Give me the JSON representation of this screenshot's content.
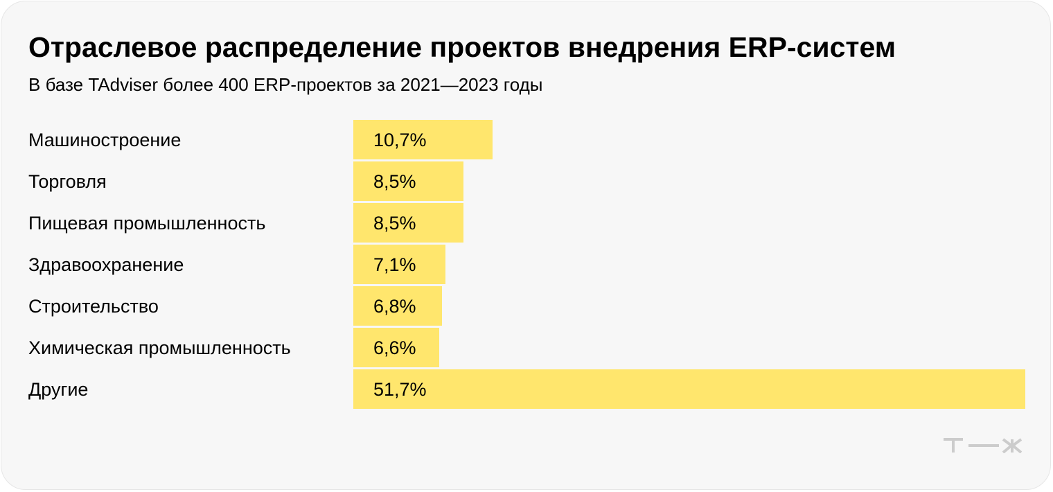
{
  "header": {
    "title": "Отраслевое распределение проектов внедрения ERP-систем",
    "subtitle": "В базе TAdviser более 400 ERP-проектов за 2021—2023 годы"
  },
  "chart_data": {
    "type": "bar",
    "orientation": "horizontal",
    "title": "Отраслевое распределение проектов внедрения ERP-систем",
    "subtitle": "В базе TAdviser более 400 ERP-проектов за 2021—2023 годы",
    "categories": [
      "Машиностроение",
      "Торговля",
      "Пищевая промышленность",
      "Здравоохранение",
      "Строительство",
      "Химическая промышленность",
      "Другие"
    ],
    "values": [
      10.7,
      8.5,
      8.5,
      7.1,
      6.8,
      6.6,
      51.7
    ],
    "value_labels": [
      "10,7%",
      "8,5%",
      "8,5%",
      "7,1%",
      "6,8%",
      "6,6%",
      "51,7%"
    ],
    "unit": "%",
    "xlim": [
      0,
      51.7
    ],
    "grid": false,
    "legend": "none",
    "colors": {
      "bar": "#ffe66d",
      "background": "#f7f7f7",
      "text": "#000000",
      "logo": "#cccccc"
    }
  },
  "branding": {
    "logo_icon": "tzh-logo-icon"
  }
}
